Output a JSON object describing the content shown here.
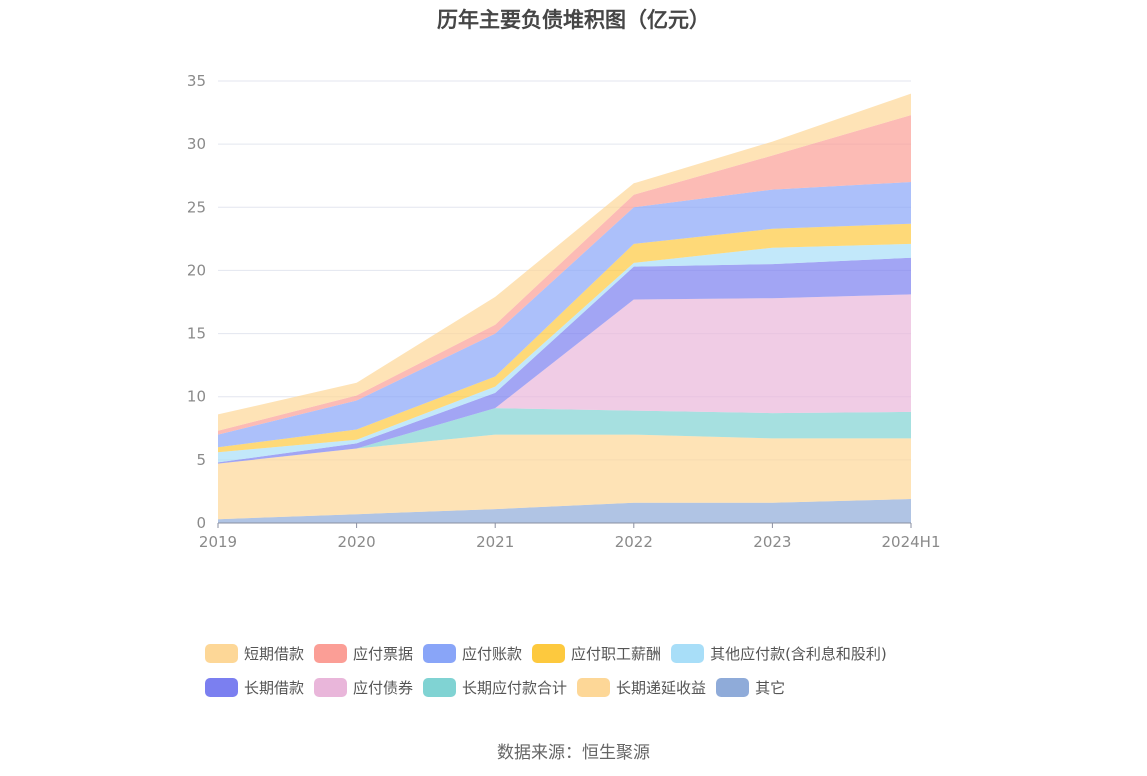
{
  "chart_data": {
    "type": "area",
    "stacked": true,
    "title": "历年主要负债堆积图（亿元）",
    "categories": [
      "2019",
      "2020",
      "2021",
      "2022",
      "2023",
      "2024H1"
    ],
    "ylim": [
      0,
      35
    ],
    "yticks": [
      "0",
      "5",
      "10",
      "15",
      "20",
      "25",
      "30",
      "35"
    ],
    "grid": true,
    "legend_position": "bottom",
    "series": [
      {
        "name": "其它",
        "color": "#8fabd9",
        "values": [
          0.3,
          0.7,
          1.1,
          1.6,
          1.6,
          1.9
        ]
      },
      {
        "name": "长期递延收益",
        "color": "#fdd797",
        "values": [
          4.4,
          5.2,
          5.9,
          5.4,
          5.1,
          4.8
        ]
      },
      {
        "name": "长期应付款合计",
        "color": "#80d3d3",
        "values": [
          0.0,
          0.0,
          2.1,
          1.9,
          2.0,
          2.1
        ]
      },
      {
        "name": "应付债券",
        "color": "#e9b6da",
        "values": [
          0.0,
          0.0,
          0.0,
          8.8,
          9.1,
          9.3
        ]
      },
      {
        "name": "长期借款",
        "color": "#7b7ff0",
        "values": [
          0.1,
          0.4,
          1.2,
          2.6,
          2.7,
          2.9
        ]
      },
      {
        "name": "其他应付款(含利息和股利)",
        "color": "#a8def8",
        "values": [
          0.8,
          0.3,
          0.5,
          0.3,
          1.3,
          1.1
        ]
      },
      {
        "name": "应付职工薪酬",
        "color": "#fdc93e",
        "values": [
          0.4,
          0.8,
          0.8,
          1.5,
          1.5,
          1.6
        ]
      },
      {
        "name": "应付账款",
        "color": "#89a5f8",
        "values": [
          1.0,
          2.3,
          3.4,
          2.9,
          3.1,
          3.3
        ]
      },
      {
        "name": "应付票据",
        "color": "#fb9e96",
        "values": [
          0.3,
          0.4,
          0.7,
          1.0,
          2.7,
          5.3
        ]
      },
      {
        "name": "短期借款",
        "color": "#fdd797",
        "values": [
          1.3,
          1.0,
          2.2,
          0.9,
          1.1,
          1.7
        ]
      }
    ]
  },
  "legend": {
    "rows": [
      [
        {
          "label": "短期借款",
          "color": "#fdd797"
        },
        {
          "label": "应付票据",
          "color": "#fb9e96"
        },
        {
          "label": "应付账款",
          "color": "#89a5f8"
        },
        {
          "label": "应付职工薪酬",
          "color": "#fdc93e"
        },
        {
          "label": "其他应付款(含利息和股利)",
          "color": "#a8def8"
        }
      ],
      [
        {
          "label": "长期借款",
          "color": "#7b7ff0"
        },
        {
          "label": "应付债券",
          "color": "#e9b6da"
        },
        {
          "label": "长期应付款合计",
          "color": "#80d3d3"
        },
        {
          "label": "长期递延收益",
          "color": "#fdd797"
        },
        {
          "label": "其它",
          "color": "#8fabd9"
        }
      ]
    ]
  },
  "source_text": "数据来源：恒生聚源"
}
